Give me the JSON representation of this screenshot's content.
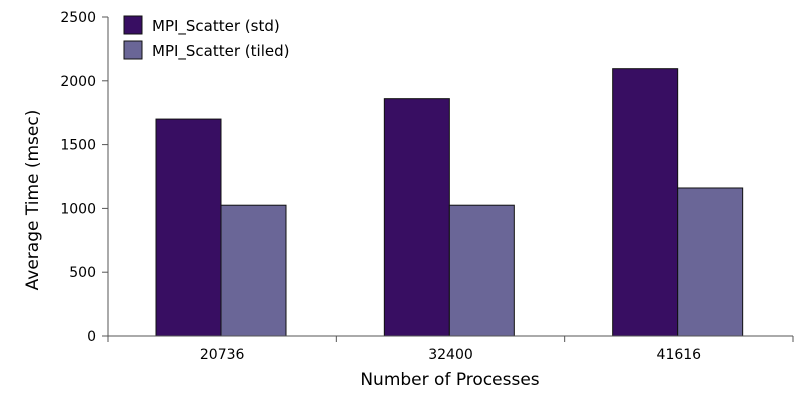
{
  "chart_data": {
    "type": "bar",
    "title": "",
    "xlabel": "Number of Processes",
    "ylabel": "Average Time (msec)",
    "categories": [
      "20736",
      "32400",
      "41616"
    ],
    "series": [
      {
        "name": "MPI_Scatter (std)",
        "values": [
          1700,
          1860,
          2095
        ],
        "color": "#380e62"
      },
      {
        "name": "MPI_Scatter (tiled)",
        "values": [
          1025,
          1025,
          1160
        ],
        "color": "#6a6697"
      }
    ],
    "ylim": [
      0,
      2500
    ],
    "yticks": [
      0,
      500,
      1000,
      1500,
      2000,
      2500
    ],
    "grid": false,
    "legend_position": "top-left"
  }
}
